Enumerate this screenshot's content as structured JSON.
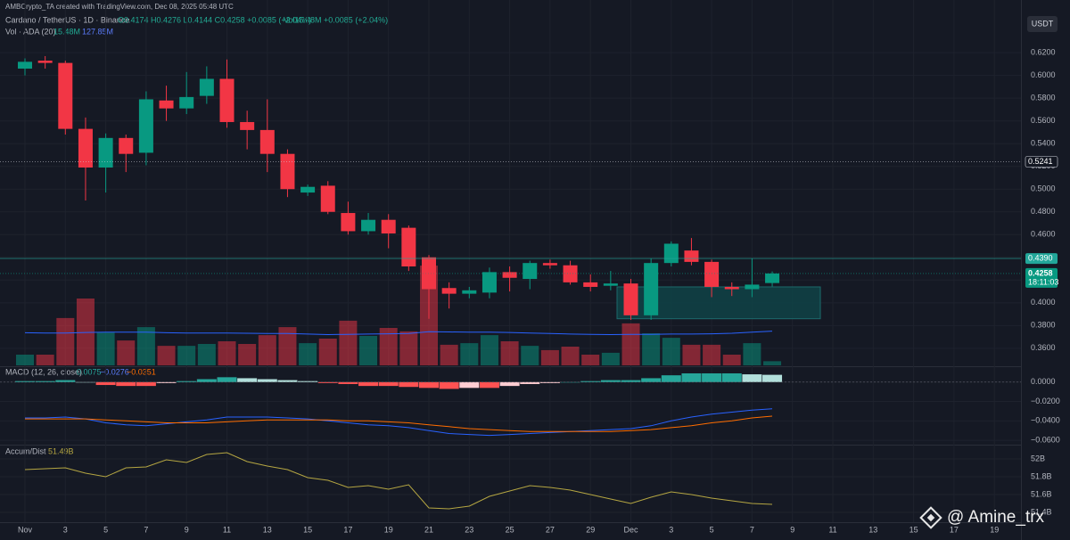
{
  "header": {
    "credit": "AMBCrypto_TA created with TradingView.com, Dec 08, 2025 05:48 UTC",
    "symbol": "Cardano / TetherUS · 1D · Binance",
    "ohlc": "O0.4174 H0.4276 L0.4144 C0.4258 +0.0085 (+2.04%)",
    "vol": "Vol15.48M +0.0085 (+2.04%)",
    "currency": "USDT",
    "watermark": "@ Amine_trx"
  },
  "chart_data": [
    {
      "type": "candlestick",
      "up_color": "#089981",
      "down_color": "#f23645",
      "categories": [
        "Nov",
        null,
        "3",
        null,
        "5",
        null,
        "7",
        null,
        "9",
        null,
        "11",
        null,
        "13",
        null,
        "15",
        null,
        "17",
        null,
        "19",
        null,
        "21",
        null,
        "23",
        null,
        "25",
        null,
        "27",
        null,
        "29",
        null,
        "Dec",
        null,
        "3",
        null,
        "5",
        null,
        "7",
        null,
        "9",
        null,
        "11",
        null,
        "13",
        null,
        "15",
        null,
        "17",
        null,
        "19",
        null
      ],
      "open": [
        0.606,
        0.613,
        0.611,
        0.553,
        0.519,
        0.545,
        0.532,
        0.578,
        0.571,
        0.582,
        0.597,
        0.559,
        0.552,
        0.531,
        0.497,
        0.503,
        0.479,
        0.463,
        0.473,
        0.466,
        0.44,
        0.413,
        0.408,
        0.409,
        0.427,
        0.421,
        0.435,
        0.433,
        0.418,
        0.415,
        0.417,
        0.389,
        0.435,
        0.446,
        0.436,
        0.414,
        0.412,
        0.4174,
        null,
        null,
        null,
        null,
        null,
        null,
        null,
        null,
        null,
        null,
        null,
        null
      ],
      "high": [
        0.615,
        0.617,
        0.613,
        0.563,
        0.549,
        0.548,
        0.586,
        0.591,
        0.603,
        0.608,
        0.614,
        0.569,
        0.579,
        0.535,
        0.504,
        0.507,
        0.489,
        0.479,
        0.478,
        0.468,
        0.442,
        0.418,
        0.414,
        0.431,
        0.432,
        0.437,
        0.438,
        0.437,
        0.425,
        0.428,
        0.421,
        0.439,
        0.454,
        0.457,
        0.438,
        0.418,
        0.439,
        0.4276,
        null,
        null,
        null,
        null,
        null,
        null,
        null,
        null,
        null,
        null,
        null,
        null
      ],
      "low": [
        0.6,
        0.606,
        0.548,
        0.49,
        0.497,
        0.515,
        0.521,
        0.56,
        0.566,
        0.575,
        0.554,
        0.535,
        0.515,
        0.493,
        0.494,
        0.478,
        0.46,
        0.46,
        0.448,
        0.428,
        0.386,
        0.395,
        0.404,
        0.404,
        0.41,
        0.412,
        0.43,
        0.416,
        0.41,
        0.411,
        0.385,
        0.385,
        0.432,
        0.433,
        0.405,
        0.406,
        0.405,
        0.4144,
        null,
        null,
        null,
        null,
        null,
        null,
        null,
        null,
        null,
        null,
        null,
        null
      ],
      "close": [
        0.612,
        0.611,
        0.553,
        0.519,
        0.545,
        0.531,
        0.579,
        0.571,
        0.581,
        0.597,
        0.559,
        0.552,
        0.531,
        0.5,
        0.502,
        0.48,
        0.463,
        0.473,
        0.461,
        0.432,
        0.412,
        0.408,
        0.411,
        0.427,
        0.422,
        0.435,
        0.433,
        0.418,
        0.414,
        0.417,
        0.389,
        0.435,
        0.452,
        0.436,
        0.414,
        0.412,
        0.416,
        0.4258,
        null,
        null,
        null,
        null,
        null,
        null,
        null,
        null,
        null,
        null,
        null,
        null
      ],
      "ylim": [
        0.345,
        0.635
      ],
      "yticks": [
        {
          "value": 0.36,
          "label": "0.3600"
        },
        {
          "value": 0.38,
          "label": "0.3800"
        },
        {
          "value": 0.4,
          "label": "0.4000"
        },
        {
          "value": 0.42,
          "label": "0.4200"
        },
        {
          "value": 0.44,
          "label": "0.4400"
        },
        {
          "value": 0.46,
          "label": "0.4600"
        },
        {
          "value": 0.48,
          "label": "0.4800"
        },
        {
          "value": 0.5,
          "label": "0.5000"
        },
        {
          "value": 0.52,
          "label": "0.5200"
        },
        {
          "value": 0.54,
          "label": "0.5400"
        },
        {
          "value": 0.56,
          "label": "0.5600"
        },
        {
          "value": 0.58,
          "label": "0.5800"
        },
        {
          "value": 0.6,
          "label": "0.6000"
        },
        {
          "value": 0.62,
          "label": "0.6200"
        }
      ],
      "price_lines": [
        {
          "value": 0.5241,
          "label": "0.5241",
          "color": "#d1d4dc",
          "dotted": true
        },
        {
          "value": 0.439,
          "label": "0.4390",
          "color": "#22a79a",
          "dotted": false
        }
      ],
      "last_price": {
        "value": 0.4258,
        "label": "0.4258",
        "countdown": "18:11:03",
        "color": "#089981"
      },
      "zone": {
        "high": 0.414,
        "low": 0.386,
        "color": "#0f4346"
      },
      "grid": true
    },
    {
      "type": "volume",
      "title": "Vol · ADA (20)",
      "legend_values": [
        "15.48M",
        "127.85M"
      ],
      "sma_color": "#2962ff",
      "values": [
        40,
        40,
        177,
        250,
        123,
        93,
        143,
        73,
        73,
        80,
        90,
        80,
        113,
        143,
        83,
        100,
        167,
        110,
        140,
        127,
        373,
        77,
        83,
        113,
        90,
        73,
        57,
        70,
        40,
        47,
        157,
        120,
        103,
        77,
        77,
        40,
        83,
        15.48,
        null,
        null,
        null,
        null,
        null,
        null,
        null,
        null,
        null,
        null,
        null,
        null
      ],
      "sma": [
        122,
        121,
        121,
        123,
        124,
        124,
        124,
        122,
        121,
        121,
        121,
        120,
        119,
        119,
        117,
        115,
        116,
        117,
        118,
        119,
        126,
        125,
        124,
        124,
        123,
        121,
        119,
        117,
        116,
        115,
        116,
        116,
        117,
        117,
        118,
        120,
        124,
        127.85,
        null,
        null,
        null,
        null,
        null,
        null,
        null,
        null,
        null,
        null,
        null,
        null
      ],
      "ylim": [
        0,
        400
      ]
    },
    {
      "type": "macd",
      "title": "MACD (12, 26, close)",
      "legend_values": [
        "0.0075",
        "−0.0276",
        "−0.0351"
      ],
      "macd_color": "#2962ff",
      "signal_color": "#ff6d00",
      "hist_colors": {
        "up_rising": "#26a69a",
        "up_falling": "#b2dfdb",
        "down_falling": "#ff5252",
        "down_rising": "#ffcdd2"
      },
      "histogram": [
        0.001,
        0.001,
        0.002,
        0,
        -0.003,
        -0.004,
        -0.004,
        -0.001,
        0.001,
        0.003,
        0.005,
        0.004,
        0.003,
        0.002,
        0.001,
        -0.001,
        -0.002,
        -0.004,
        -0.004,
        -0.005,
        -0.006,
        -0.007,
        -0.006,
        -0.006,
        -0.004,
        -0.002,
        -0.001,
        0,
        0.001,
        0.002,
        0.002,
        0.004,
        0.007,
        0.009,
        0.009,
        0.009,
        0.008,
        0.0075,
        null,
        null,
        null,
        null,
        null,
        null,
        null,
        null,
        null,
        null,
        null,
        null
      ],
      "macd": [
        -0.037,
        -0.037,
        -0.036,
        -0.038,
        -0.042,
        -0.044,
        -0.045,
        -0.043,
        -0.041,
        -0.039,
        -0.036,
        -0.036,
        -0.036,
        -0.037,
        -0.038,
        -0.04,
        -0.042,
        -0.044,
        -0.045,
        -0.047,
        -0.05,
        -0.053,
        -0.054,
        -0.055,
        -0.054,
        -0.053,
        -0.052,
        -0.051,
        -0.05,
        -0.049,
        -0.048,
        -0.045,
        -0.04,
        -0.036,
        -0.033,
        -0.031,
        -0.029,
        -0.0276,
        null,
        null,
        null,
        null,
        null,
        null,
        null,
        null,
        null,
        null,
        null,
        null
      ],
      "signal": [
        -0.038,
        -0.038,
        -0.038,
        -0.038,
        -0.039,
        -0.04,
        -0.041,
        -0.042,
        -0.042,
        -0.042,
        -0.041,
        -0.04,
        -0.039,
        -0.039,
        -0.039,
        -0.039,
        -0.04,
        -0.04,
        -0.041,
        -0.042,
        -0.044,
        -0.046,
        -0.048,
        -0.049,
        -0.05,
        -0.051,
        -0.051,
        -0.051,
        -0.051,
        -0.051,
        -0.05,
        -0.049,
        -0.047,
        -0.045,
        -0.042,
        -0.04,
        -0.037,
        -0.0351,
        null,
        null,
        null,
        null,
        null,
        null,
        null,
        null,
        null,
        null,
        null,
        null
      ],
      "ylim": [
        -0.0636,
        0.0145
      ],
      "yticks": [
        {
          "value": 0,
          "label": "0.0000"
        },
        {
          "value": -0.02,
          "label": "−0.0200"
        },
        {
          "value": -0.04,
          "label": "−0.0400"
        },
        {
          "value": -0.06,
          "label": "−0.0600"
        }
      ]
    },
    {
      "type": "line",
      "title": "Accum/Dist",
      "legend_values": [
        "51.49B"
      ],
      "color": "#b5a642",
      "values": [
        51.88,
        51.89,
        51.9,
        51.84,
        51.8,
        51.9,
        51.91,
        51.99,
        51.96,
        52.05,
        52.07,
        51.97,
        51.92,
        51.88,
        51.79,
        51.76,
        51.68,
        51.7,
        51.66,
        51.71,
        51.45,
        51.44,
        51.47,
        51.58,
        51.64,
        51.7,
        51.68,
        51.65,
        51.6,
        51.55,
        51.5,
        51.57,
        51.63,
        51.6,
        51.56,
        51.53,
        51.5,
        51.49,
        null,
        null,
        null,
        null,
        null,
        null,
        null,
        null,
        null,
        null,
        null,
        null
      ],
      "ylim": [
        51.29,
        52.14
      ],
      "yticks": [
        {
          "value": 52,
          "label": "52B"
        },
        {
          "value": 51.8,
          "label": "51.8B"
        },
        {
          "value": 51.6,
          "label": "51.6B"
        },
        {
          "value": 51.4,
          "label": "51.4B"
        }
      ]
    }
  ]
}
